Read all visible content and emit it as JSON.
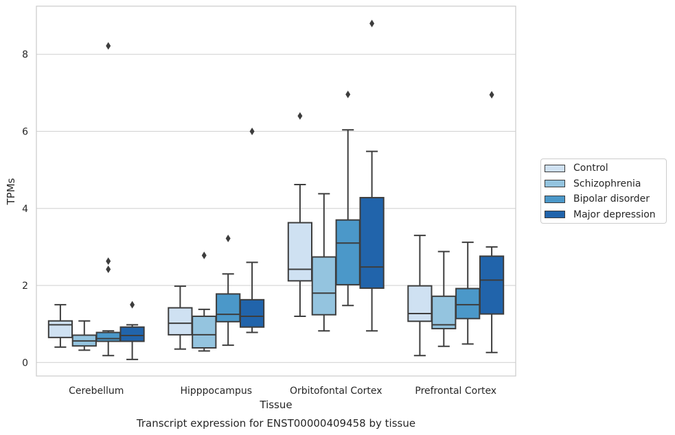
{
  "chart_data": {
    "type": "boxplot",
    "caption": "Transcript expression for ENST00000409458 by tissue",
    "xlabel": "Tissue",
    "ylabel": "TPMs",
    "ylim": [
      -0.35,
      9.25
    ],
    "yticks": [
      0,
      2,
      4,
      6,
      8
    ],
    "grid": "horizontal",
    "legend_position": "right, outside plot",
    "categories": [
      "Cerebellum",
      "Hipppocampus",
      "Orbitofontal Cortex",
      "Prefrontal Cortex"
    ],
    "series": [
      {
        "name": "Control",
        "color": "#cfe1f2",
        "boxes": [
          {
            "whislo": 0.4,
            "q1": 0.65,
            "med": 0.98,
            "q3": 1.08,
            "whishi": 1.5,
            "fliers": []
          },
          {
            "whislo": 0.35,
            "q1": 0.72,
            "med": 1.02,
            "q3": 1.42,
            "whishi": 1.98,
            "fliers": []
          },
          {
            "whislo": 1.2,
            "q1": 2.12,
            "med": 2.42,
            "q3": 3.63,
            "whishi": 4.62,
            "fliers": [
              6.4
            ]
          },
          {
            "whislo": 0.18,
            "q1": 1.07,
            "med": 1.27,
            "q3": 1.99,
            "whishi": 3.3,
            "fliers": []
          }
        ]
      },
      {
        "name": "Schizophrenia",
        "color": "#94c4df",
        "boxes": [
          {
            "whislo": 0.32,
            "q1": 0.43,
            "med": 0.56,
            "q3": 0.71,
            "whishi": 1.08,
            "fliers": []
          },
          {
            "whislo": 0.3,
            "q1": 0.38,
            "med": 0.72,
            "q3": 1.2,
            "whishi": 1.38,
            "fliers": [
              2.78
            ]
          },
          {
            "whislo": 0.82,
            "q1": 1.24,
            "med": 1.8,
            "q3": 2.74,
            "whishi": 4.38,
            "fliers": []
          },
          {
            "whislo": 0.42,
            "q1": 0.88,
            "med": 0.98,
            "q3": 1.72,
            "whishi": 2.88,
            "fliers": []
          }
        ]
      },
      {
        "name": "Bipolar disorder",
        "color": "#4b98c9",
        "boxes": [
          {
            "whislo": 0.18,
            "q1": 0.55,
            "med": 0.62,
            "q3": 0.78,
            "whishi": 0.82,
            "fliers": [
              2.42,
              2.63,
              8.22
            ]
          },
          {
            "whislo": 0.45,
            "q1": 1.06,
            "med": 1.25,
            "q3": 1.78,
            "whishi": 2.3,
            "fliers": [
              3.22
            ]
          },
          {
            "whislo": 1.48,
            "q1": 2.02,
            "med": 3.1,
            "q3": 3.7,
            "whishi": 6.04,
            "fliers": [
              6.96
            ]
          },
          {
            "whislo": 0.48,
            "q1": 1.14,
            "med": 1.5,
            "q3": 1.92,
            "whishi": 3.12,
            "fliers": []
          }
        ]
      },
      {
        "name": "Major depression",
        "color": "#2164ab",
        "boxes": [
          {
            "whislo": 0.08,
            "q1": 0.55,
            "med": 0.7,
            "q3": 0.92,
            "whishi": 0.98,
            "fliers": [
              1.5
            ]
          },
          {
            "whislo": 0.78,
            "q1": 0.92,
            "med": 1.2,
            "q3": 1.63,
            "whishi": 2.6,
            "fliers": [
              6.0
            ]
          },
          {
            "whislo": 0.82,
            "q1": 1.93,
            "med": 2.48,
            "q3": 4.28,
            "whishi": 5.48,
            "fliers": [
              8.8
            ]
          },
          {
            "whislo": 0.26,
            "q1": 1.26,
            "med": 2.14,
            "q3": 2.76,
            "whishi": 3.0,
            "fliers": [
              6.95
            ]
          }
        ]
      }
    ]
  }
}
